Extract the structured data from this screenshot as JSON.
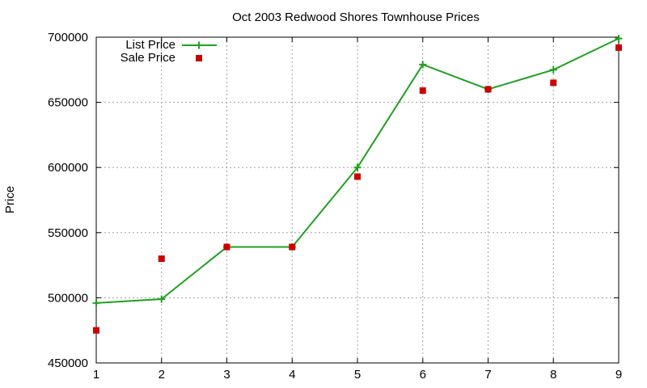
{
  "chart_data": {
    "type": "line",
    "title": "Oct 2003 Redwood Shores Townhouse Prices",
    "xlabel": "",
    "ylabel": "Price",
    "x": [
      1,
      2,
      3,
      4,
      5,
      6,
      7,
      8,
      9
    ],
    "xlim": [
      1,
      9
    ],
    "ylim": [
      450000,
      700000
    ],
    "x_ticks": [
      "1",
      "2",
      "3",
      "4",
      "5",
      "6",
      "7",
      "8",
      "9"
    ],
    "y_ticks": [
      "450000",
      "500000",
      "550000",
      "600000",
      "650000",
      "700000"
    ],
    "grid": true,
    "legend_position": "top-left",
    "series": [
      {
        "name": "List Price",
        "style": "linespoints",
        "marker": "plus",
        "color": "#20a020",
        "values": [
          496000,
          499000,
          539000,
          539000,
          600000,
          679000,
          660000,
          675000,
          699000
        ]
      },
      {
        "name": "Sale Price",
        "style": "points",
        "marker": "square",
        "color": "#cc0000",
        "values": [
          475000,
          530000,
          539000,
          539000,
          593000,
          659000,
          660000,
          665000,
          692000
        ]
      }
    ]
  }
}
